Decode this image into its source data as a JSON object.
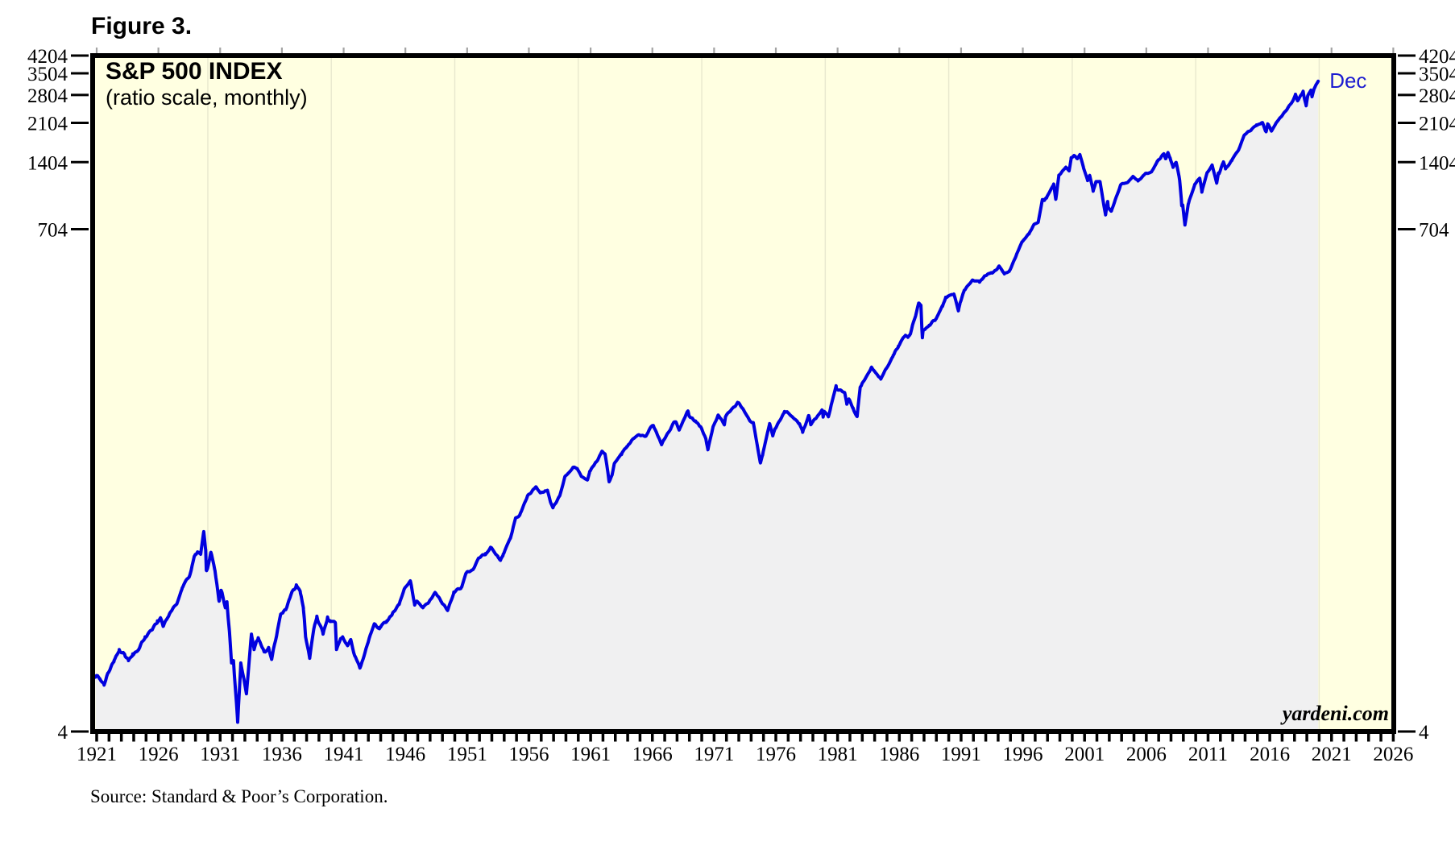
{
  "figure_label": "Figure 3.",
  "chart": {
    "title": "S&P 500 INDEX",
    "subtitle": "(ratio scale, monthly)",
    "end_label": "Dec",
    "watermark": "yardeni.com",
    "source": "Source: Standard & Poor’s Corporation."
  },
  "colors": {
    "page_bg": "#FFFFFF",
    "plot_bg": "#FFFFE1",
    "area_fill": "#F0F0F1",
    "line": "#0101DF",
    "end_label": "#1B1BD0",
    "border": "#000000",
    "grid": "rgba(205,205,185,0.45)"
  },
  "chart_data": {
    "type": "area",
    "title": "S&P 500 INDEX",
    "subtitle": "(ratio scale, monthly)",
    "y_scale": "log",
    "y_range": [
      4,
      4204
    ],
    "y_ticks": [
      4,
      704,
      1404,
      2104,
      2804,
      3504,
      4204
    ],
    "y_tick_sides": [
      "left",
      "right"
    ],
    "x_range": [
      1920.674,
      2026.04
    ],
    "x_ticks": [
      1921,
      1926,
      1931,
      1936,
      1941,
      1946,
      1951,
      1956,
      1961,
      1966,
      1971,
      1976,
      1981,
      1986,
      1991,
      1996,
      2001,
      2006,
      2011,
      2016,
      2021,
      2026
    ],
    "x_minor_range": [
      1921,
      2026
    ],
    "x_minor_tick_interval_years": 1,
    "grid_decades": [
      1930,
      1940,
      1950,
      1960,
      1970,
      1980,
      1990,
      2000,
      2010,
      2020
    ],
    "last_point": {
      "x": 2019.92,
      "y": 3230.78,
      "label": "Dec"
    },
    "series": [
      {
        "name": "S&P 500 monthly close",
        "points": [
          [
            1920.9,
            7.0
          ],
          [
            1921.0,
            7.1
          ],
          [
            1921.25,
            6.9
          ],
          [
            1921.6,
            6.45
          ],
          [
            1921.92,
            7.3
          ],
          [
            1922.4,
            8.3
          ],
          [
            1922.83,
            9.3
          ],
          [
            1923.25,
            8.9
          ],
          [
            1923.58,
            8.3
          ],
          [
            1923.92,
            8.9
          ],
          [
            1924.33,
            9.2
          ],
          [
            1924.92,
            10.6
          ],
          [
            1925.5,
            11.4
          ],
          [
            1925.92,
            12.5
          ],
          [
            1926.17,
            12.9
          ],
          [
            1926.38,
            11.8
          ],
          [
            1926.92,
            13.5
          ],
          [
            1927.5,
            14.9
          ],
          [
            1927.92,
            17.5
          ],
          [
            1928.5,
            19.7
          ],
          [
            1928.92,
            24.3
          ],
          [
            1929.17,
            25.4
          ],
          [
            1929.42,
            24.8
          ],
          [
            1929.67,
            31.3
          ],
          [
            1929.83,
            26.0
          ],
          [
            1929.88,
            21.0
          ],
          [
            1929.97,
            21.4
          ],
          [
            1930.25,
            25.3
          ],
          [
            1930.58,
            21.0
          ],
          [
            1930.92,
            15.3
          ],
          [
            1931.08,
            17.1
          ],
          [
            1931.42,
            14.3
          ],
          [
            1931.55,
            15.2
          ],
          [
            1931.75,
            11.2
          ],
          [
            1931.92,
            8.1
          ],
          [
            1932.08,
            8.3
          ],
          [
            1932.42,
            4.4
          ],
          [
            1932.67,
            8.1
          ],
          [
            1932.92,
            6.9
          ],
          [
            1933.13,
            5.9
          ],
          [
            1933.53,
            10.9
          ],
          [
            1933.75,
            9.3
          ],
          [
            1933.92,
            10.1
          ],
          [
            1934.08,
            10.5
          ],
          [
            1934.58,
            9.1
          ],
          [
            1934.92,
            9.5
          ],
          [
            1935.17,
            8.4
          ],
          [
            1935.92,
            13.4
          ],
          [
            1936.33,
            14.1
          ],
          [
            1936.92,
            17.2
          ],
          [
            1937.17,
            18.1
          ],
          [
            1937.5,
            16.6
          ],
          [
            1937.75,
            14.0
          ],
          [
            1937.92,
            10.6
          ],
          [
            1938.25,
            8.5
          ],
          [
            1938.58,
            11.5
          ],
          [
            1938.83,
            13.1
          ],
          [
            1939.33,
            10.9
          ],
          [
            1939.7,
            13.0
          ],
          [
            1939.92,
            12.5
          ],
          [
            1940.33,
            12.2
          ],
          [
            1940.42,
            9.3
          ],
          [
            1940.75,
            10.4
          ],
          [
            1940.92,
            10.6
          ],
          [
            1941.33,
            9.7
          ],
          [
            1941.58,
            10.3
          ],
          [
            1941.92,
            8.7
          ],
          [
            1942.33,
            7.7
          ],
          [
            1942.92,
            9.8
          ],
          [
            1943.5,
            12.1
          ],
          [
            1943.92,
            11.7
          ],
          [
            1944.5,
            12.5
          ],
          [
            1944.92,
            13.3
          ],
          [
            1945.5,
            14.8
          ],
          [
            1945.92,
            17.4
          ],
          [
            1946.42,
            18.7
          ],
          [
            1946.75,
            14.7
          ],
          [
            1946.92,
            15.3
          ],
          [
            1947.42,
            14.3
          ],
          [
            1947.92,
            15.2
          ],
          [
            1948.42,
            16.7
          ],
          [
            1948.92,
            15.2
          ],
          [
            1949.42,
            13.9
          ],
          [
            1949.92,
            16.8
          ],
          [
            1950.55,
            17.7
          ],
          [
            1950.92,
            20.4
          ],
          [
            1951.5,
            21.3
          ],
          [
            1951.92,
            23.8
          ],
          [
            1952.5,
            25.0
          ],
          [
            1952.92,
            26.6
          ],
          [
            1953.5,
            24.1
          ],
          [
            1953.7,
            23.3
          ],
          [
            1953.92,
            24.8
          ],
          [
            1954.5,
            29.2
          ],
          [
            1954.92,
            36.0
          ],
          [
            1955.25,
            37.0
          ],
          [
            1955.92,
            45.5
          ],
          [
            1956.58,
            49.6
          ],
          [
            1956.92,
            46.7
          ],
          [
            1957.5,
            47.9
          ],
          [
            1957.75,
            42.4
          ],
          [
            1957.95,
            40.0
          ],
          [
            1958.5,
            45.3
          ],
          [
            1958.92,
            55.2
          ],
          [
            1959.58,
            60.5
          ],
          [
            1959.92,
            59.9
          ],
          [
            1960.25,
            55.3
          ],
          [
            1960.75,
            53.4
          ],
          [
            1960.92,
            58.1
          ],
          [
            1961.5,
            64.6
          ],
          [
            1961.92,
            71.6
          ],
          [
            1962.17,
            69.6
          ],
          [
            1962.5,
            52.3
          ],
          [
            1962.75,
            56.5
          ],
          [
            1962.92,
            63.1
          ],
          [
            1963.5,
            69.1
          ],
          [
            1963.92,
            75.0
          ],
          [
            1964.5,
            81.7
          ],
          [
            1964.92,
            84.8
          ],
          [
            1965.5,
            84.1
          ],
          [
            1965.92,
            92.4
          ],
          [
            1966.08,
            93.3
          ],
          [
            1966.75,
            76.6
          ],
          [
            1966.92,
            80.3
          ],
          [
            1967.5,
            90.6
          ],
          [
            1967.75,
            96.7
          ],
          [
            1967.92,
            96.5
          ],
          [
            1968.17,
            89.1
          ],
          [
            1968.88,
            108.4
          ],
          [
            1968.96,
            103.9
          ],
          [
            1969.5,
            97.7
          ],
          [
            1969.92,
            92.1
          ],
          [
            1970.33,
            81.5
          ],
          [
            1970.42,
            76.5
          ],
          [
            1970.5,
            72.7
          ],
          [
            1970.92,
            92.2
          ],
          [
            1971.33,
            103.9
          ],
          [
            1971.83,
            94.0
          ],
          [
            1971.92,
            102.1
          ],
          [
            1972.92,
            118.1
          ],
          [
            1973.08,
            116.0
          ],
          [
            1973.92,
            97.6
          ],
          [
            1974.17,
            96.2
          ],
          [
            1974.75,
            63.5
          ],
          [
            1974.92,
            68.6
          ],
          [
            1975.5,
            95.2
          ],
          [
            1975.75,
            83.9
          ],
          [
            1975.92,
            90.2
          ],
          [
            1976.7,
            107.8
          ],
          [
            1976.92,
            107.5
          ],
          [
            1977.92,
            95.1
          ],
          [
            1978.17,
            87.0
          ],
          [
            1978.67,
            103.3
          ],
          [
            1978.83,
            94.1
          ],
          [
            1978.92,
            96.1
          ],
          [
            1979.75,
            109.3
          ],
          [
            1979.83,
            101.8
          ],
          [
            1979.92,
            107.9
          ],
          [
            1980.25,
            102.1
          ],
          [
            1980.88,
            140.5
          ],
          [
            1980.92,
            135.8
          ],
          [
            1981.58,
            130.9
          ],
          [
            1981.75,
            116.2
          ],
          [
            1981.92,
            122.6
          ],
          [
            1982.25,
            112.0
          ],
          [
            1982.58,
            102.4
          ],
          [
            1982.83,
            138.5
          ],
          [
            1982.92,
            140.6
          ],
          [
            1983.75,
            170.0
          ],
          [
            1983.92,
            164.9
          ],
          [
            1984.5,
            150.6
          ],
          [
            1984.92,
            167.2
          ],
          [
            1985.5,
            191.9
          ],
          [
            1985.92,
            211.3
          ],
          [
            1986.5,
            236.1
          ],
          [
            1986.7,
            231.3
          ],
          [
            1986.92,
            242.2
          ],
          [
            1987.58,
            329.1
          ],
          [
            1987.75,
            321.8
          ],
          [
            1987.83,
            251.8
          ],
          [
            1987.87,
            230.3
          ],
          [
            1987.92,
            247.1
          ],
          [
            1988.42,
            262.2
          ],
          [
            1988.92,
            277.7
          ],
          [
            1989.5,
            318.0
          ],
          [
            1989.75,
            349.2
          ],
          [
            1989.92,
            353.4
          ],
          [
            1990.42,
            361.2
          ],
          [
            1990.78,
            304.0
          ],
          [
            1990.92,
            330.2
          ],
          [
            1991.25,
            375.2
          ],
          [
            1991.92,
            417.1
          ],
          [
            1992.5,
            408.1
          ],
          [
            1992.92,
            435.7
          ],
          [
            1993.5,
            448.1
          ],
          [
            1993.92,
            466.4
          ],
          [
            1994.08,
            482.0
          ],
          [
            1994.5,
            444.3
          ],
          [
            1994.92,
            459.3
          ],
          [
            1995.5,
            544.8
          ],
          [
            1995.92,
            615.9
          ],
          [
            1996.5,
            670.6
          ],
          [
            1996.92,
            740.7
          ],
          [
            1997.25,
            757.1
          ],
          [
            1997.58,
            954.3
          ],
          [
            1997.75,
            947.3
          ],
          [
            1997.92,
            970.4
          ],
          [
            1998.5,
            1120.7
          ],
          [
            1998.67,
            957.3
          ],
          [
            1998.92,
            1229.2
          ],
          [
            1999.5,
            1328.7
          ],
          [
            1999.75,
            1282.7
          ],
          [
            1999.92,
            1469.3
          ],
          [
            2000.17,
            1498.6
          ],
          [
            2000.42,
            1454.6
          ],
          [
            2000.62,
            1517.7
          ],
          [
            2000.92,
            1320.3
          ],
          [
            2001.25,
            1160.3
          ],
          [
            2001.42,
            1224.4
          ],
          [
            2001.7,
            1040.9
          ],
          [
            2001.92,
            1148.1
          ],
          [
            2002.25,
            1147.4
          ],
          [
            2002.7,
            815.3
          ],
          [
            2002.87,
            936.3
          ],
          [
            2002.92,
            879.8
          ],
          [
            2003.17,
            848.2
          ],
          [
            2003.92,
            1111.9
          ],
          [
            2004.5,
            1140.8
          ],
          [
            2004.92,
            1211.9
          ],
          [
            2005.33,
            1156.9
          ],
          [
            2005.92,
            1248.3
          ],
          [
            2006.42,
            1270.1
          ],
          [
            2006.92,
            1418.3
          ],
          [
            2007.42,
            1530.6
          ],
          [
            2007.58,
            1455.3
          ],
          [
            2007.75,
            1549.4
          ],
          [
            2007.92,
            1468.4
          ],
          [
            2008.17,
            1330.6
          ],
          [
            2008.42,
            1400.4
          ],
          [
            2008.7,
            1166.4
          ],
          [
            2008.83,
            968.8
          ],
          [
            2008.87,
            896.2
          ],
          [
            2008.95,
            903.3
          ],
          [
            2009.13,
            735.1
          ],
          [
            2009.42,
            919.1
          ],
          [
            2009.92,
            1115.1
          ],
          [
            2010.33,
            1186.7
          ],
          [
            2010.5,
            1030.7
          ],
          [
            2010.92,
            1257.6
          ],
          [
            2011.33,
            1363.6
          ],
          [
            2011.7,
            1131.4
          ],
          [
            2011.83,
            1253.3
          ],
          [
            2011.92,
            1257.6
          ],
          [
            2012.25,
            1408.5
          ],
          [
            2012.42,
            1310.3
          ],
          [
            2012.92,
            1426.2
          ],
          [
            2013.5,
            1606.3
          ],
          [
            2013.92,
            1848.4
          ],
          [
            2014.5,
            1960.2
          ],
          [
            2014.92,
            2058.9
          ],
          [
            2015.42,
            2107.4
          ],
          [
            2015.7,
            1920.0
          ],
          [
            2015.83,
            2080.4
          ],
          [
            2015.92,
            2043.9
          ],
          [
            2016.13,
            1932.2
          ],
          [
            2016.5,
            2098.9
          ],
          [
            2016.92,
            2238.8
          ],
          [
            2017.5,
            2470.3
          ],
          [
            2017.92,
            2673.6
          ],
          [
            2018.08,
            2823.8
          ],
          [
            2018.25,
            2640.9
          ],
          [
            2018.7,
            2914.0
          ],
          [
            2018.8,
            2711.7
          ],
          [
            2018.95,
            2506.9
          ],
          [
            2019.08,
            2784.5
          ],
          [
            2019.33,
            2945.8
          ],
          [
            2019.42,
            2752.1
          ],
          [
            2019.58,
            2980.4
          ],
          [
            2019.92,
            3230.78
          ]
        ]
      }
    ]
  }
}
